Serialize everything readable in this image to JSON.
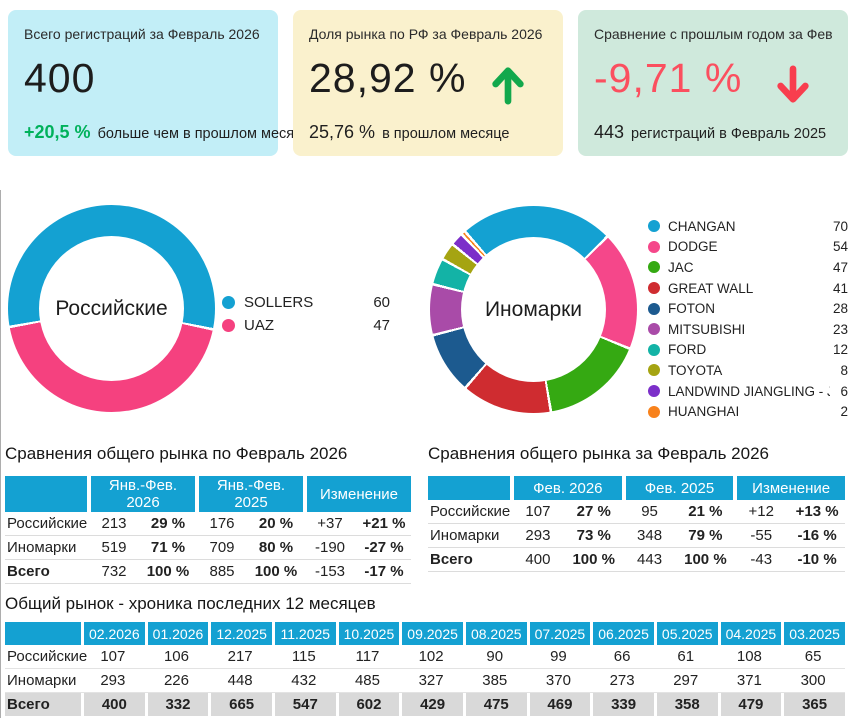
{
  "cards": [
    {
      "title": "Всего регистраций за Февраль 2026",
      "value": "400",
      "delta": "+20,5 %",
      "delta_color": "#00b15b",
      "subtitle": "больше чем в прошлом месяце",
      "bg": "#c2eef7"
    },
    {
      "title": "Доля рынка по РФ за Февраль 2026",
      "value": "28,92 %",
      "delta": "25,76 %",
      "subtitle": "в прошлом месяце",
      "bg": "#faf1cd",
      "arrow": "up",
      "arrow_color": "#12a84c"
    },
    {
      "title": "Сравнение с прошлым годом за Февраль",
      "value": "-9,71 %",
      "value_color": "#fb4f5f",
      "delta": "443",
      "subtitle": "регистраций в Февраль 2025",
      "bg": "#cfe9dc",
      "arrow": "down",
      "arrow_color": "#f83e4e"
    }
  ],
  "chart_data": [
    {
      "type": "pie",
      "title": "Российские",
      "start_angle": 259,
      "legend_position": "right",
      "slices": [
        {
          "label": "SOLLERS",
          "value": 60,
          "color": "#14a1d2"
        },
        {
          "label": "UAZ",
          "value": 47,
          "color": "#f5417f"
        }
      ]
    },
    {
      "type": "pie",
      "title": "Иномарки",
      "start_angle": 318,
      "legend_position": "right",
      "slices": [
        {
          "label": "CHANGAN",
          "value": 70,
          "color": "#14a1d2"
        },
        {
          "label": "DODGE",
          "value": 54,
          "color": "#f5478a"
        },
        {
          "label": "JAC",
          "value": 47,
          "color": "#35a912"
        },
        {
          "label": "GREAT WALL",
          "value": 41,
          "color": "#cf2c30"
        },
        {
          "label": "FOTON",
          "value": 28,
          "color": "#1c5a8f"
        },
        {
          "label": "MITSUBISHI",
          "value": 23,
          "color": "#a94ba8"
        },
        {
          "label": "FORD",
          "value": 12,
          "color": "#13b3a6"
        },
        {
          "label": "TOYOTA",
          "value": 8,
          "color": "#a5a412"
        },
        {
          "label": "LANDWIND JIANGLING - JMC",
          "value": 6,
          "color": "#7c2fc9"
        },
        {
          "label": "HUANGHAI",
          "value": 2,
          "color": "#f8821c"
        }
      ]
    }
  ],
  "comparison_tables": [
    {
      "title": "Сравнения общего рынка по Февраль 2026",
      "column_groups": [
        "Янв.-Фев. 2026",
        "Янв.-Фев. 2025",
        "Изменение"
      ],
      "rows": [
        {
          "label": "Российские",
          "values": [
            "213",
            "29 %",
            "176",
            "20 %",
            "+37",
            "+21 %"
          ]
        },
        {
          "label": "Иномарки",
          "values": [
            "519",
            "71 %",
            "709",
            "80 %",
            "-190",
            "-27 %"
          ]
        },
        {
          "label": "Всего",
          "values": [
            "732",
            "100 %",
            "885",
            "100 %",
            "-153",
            "-17 %"
          ],
          "total": true
        }
      ]
    },
    {
      "title": "Сравнения общего рынка за Февраль 2026",
      "column_groups": [
        "Фев. 2026",
        "Фев. 2025",
        "Изменение"
      ],
      "rows": [
        {
          "label": "Российские",
          "values": [
            "107",
            "27 %",
            "95",
            "21 %",
            "+12",
            "+13 %"
          ]
        },
        {
          "label": "Иномарки",
          "values": [
            "293",
            "73 %",
            "348",
            "79 %",
            "-55",
            "-16 %"
          ]
        },
        {
          "label": "Всего",
          "values": [
            "400",
            "100 %",
            "443",
            "100 %",
            "-43",
            "-10 %"
          ],
          "total": true
        }
      ]
    }
  ],
  "history_table": {
    "title": "Общий рынок - хроника последних 12 месяцев",
    "columns": [
      "02.2026",
      "01.2026",
      "12.2025",
      "11.2025",
      "10.2025",
      "09.2025",
      "08.2025",
      "07.2025",
      "06.2025",
      "05.2025",
      "04.2025",
      "03.2025"
    ],
    "rows": [
      {
        "label": "Российские",
        "values": [
          "107",
          "106",
          "217",
          "115",
          "117",
          "102",
          "90",
          "99",
          "66",
          "61",
          "108",
          "65"
        ]
      },
      {
        "label": "Иномарки",
        "values": [
          "293",
          "226",
          "448",
          "432",
          "485",
          "327",
          "385",
          "370",
          "273",
          "297",
          "371",
          "300"
        ]
      },
      {
        "label": "Всего",
        "values": [
          "400",
          "332",
          "665",
          "547",
          "602",
          "429",
          "475",
          "469",
          "339",
          "358",
          "479",
          "365"
        ],
        "total": true
      }
    ]
  },
  "colors": {
    "accent_blue": "#14a1d2",
    "positive_text": "#00a651",
    "negative_text": "#f96a6f",
    "table_header_bg": "#14a1d2",
    "total_row_bg": "#d9d9d9"
  }
}
